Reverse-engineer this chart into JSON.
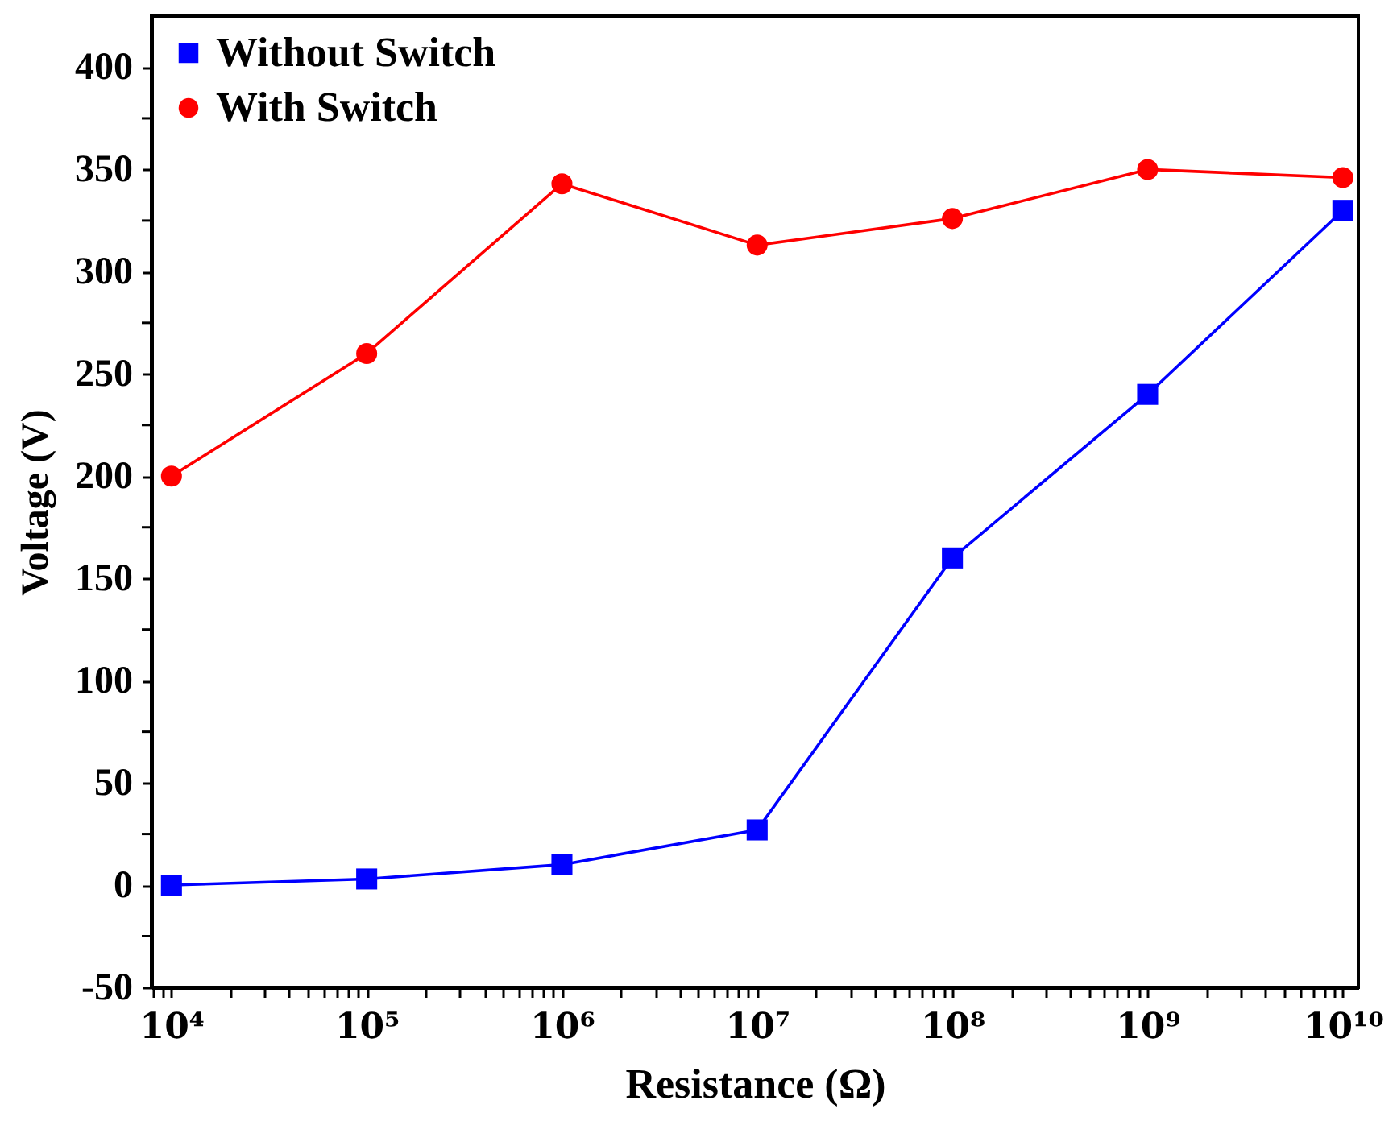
{
  "chart_data": {
    "type": "line",
    "xlabel": "Resistance (Ω)",
    "ylabel": "Voltage (V)",
    "log": "x",
    "x": [
      10000,
      100000,
      1000000,
      10000000,
      100000000,
      1000000000,
      10000000000
    ],
    "series": [
      {
        "name": "Without Switch",
        "color": "#0000ff",
        "marker": "square",
        "values": [
          0,
          3,
          10,
          27,
          160,
          240,
          330
        ]
      },
      {
        "name": "With Switch",
        "color": "#ff0000",
        "marker": "circle",
        "values": [
          200,
          260,
          343,
          313,
          326,
          350,
          346
        ]
      }
    ],
    "xlim": [
      7900,
      12000000000
    ],
    "xticks": [
      {
        "value": 8000,
        "label": null
      },
      {
        "value": 9000,
        "label": null
      },
      {
        "value": 10000,
        "label": "10⁴"
      },
      {
        "value": 20000,
        "label": null
      },
      {
        "value": 30000,
        "label": null
      },
      {
        "value": 40000,
        "label": null
      },
      {
        "value": 50000,
        "label": null
      },
      {
        "value": 60000,
        "label": null
      },
      {
        "value": 70000,
        "label": null
      },
      {
        "value": 80000,
        "label": null
      },
      {
        "value": 90000,
        "label": null
      },
      {
        "value": 100000,
        "label": "10⁵"
      },
      {
        "value": 200000,
        "label": null
      },
      {
        "value": 300000,
        "label": null
      },
      {
        "value": 400000,
        "label": null
      },
      {
        "value": 500000,
        "label": null
      },
      {
        "value": 600000,
        "label": null
      },
      {
        "value": 700000,
        "label": null
      },
      {
        "value": 800000,
        "label": null
      },
      {
        "value": 900000,
        "label": null
      },
      {
        "value": 1000000,
        "label": "10⁶"
      },
      {
        "value": 2000000,
        "label": null
      },
      {
        "value": 3000000,
        "label": null
      },
      {
        "value": 4000000,
        "label": null
      },
      {
        "value": 5000000,
        "label": null
      },
      {
        "value": 6000000,
        "label": null
      },
      {
        "value": 7000000,
        "label": null
      },
      {
        "value": 8000000,
        "label": null
      },
      {
        "value": 9000000,
        "label": null
      },
      {
        "value": 10000000,
        "label": "10⁷"
      },
      {
        "value": 20000000,
        "label": null
      },
      {
        "value": 30000000,
        "label": null
      },
      {
        "value": 40000000,
        "label": null
      },
      {
        "value": 50000000,
        "label": null
      },
      {
        "value": 60000000,
        "label": null
      },
      {
        "value": 70000000,
        "label": null
      },
      {
        "value": 80000000,
        "label": null
      },
      {
        "value": 90000000,
        "label": null
      },
      {
        "value": 100000000,
        "label": "10⁸"
      },
      {
        "value": 200000000,
        "label": null
      },
      {
        "value": 300000000,
        "label": null
      },
      {
        "value": 400000000,
        "label": null
      },
      {
        "value": 500000000,
        "label": null
      },
      {
        "value": 600000000,
        "label": null
      },
      {
        "value": 700000000,
        "label": null
      },
      {
        "value": 800000000,
        "label": null
      },
      {
        "value": 900000000,
        "label": null
      },
      {
        "value": 1000000000,
        "label": "10⁹"
      },
      {
        "value": 2000000000,
        "label": null
      },
      {
        "value": 3000000000,
        "label": null
      },
      {
        "value": 4000000000,
        "label": null
      },
      {
        "value": 5000000000,
        "label": null
      },
      {
        "value": 6000000000,
        "label": null
      },
      {
        "value": 7000000000,
        "label": null
      },
      {
        "value": 8000000000,
        "label": null
      },
      {
        "value": 9000000000,
        "label": null
      },
      {
        "value": 10000000000,
        "label": "10¹⁰"
      }
    ],
    "ylim": [
      -50,
      425
    ],
    "yticks": [
      -50,
      {
        "value": -25,
        "label": null
      },
      0,
      {
        "value": 25,
        "label": null
      },
      50,
      {
        "value": 75,
        "label": null
      },
      100,
      {
        "value": 125,
        "label": null
      },
      150,
      {
        "value": 175,
        "label": null
      },
      200,
      {
        "value": 225,
        "label": null
      },
      250,
      {
        "value": 275,
        "label": null
      },
      300,
      {
        "value": 325,
        "label": null
      },
      350,
      {
        "value": 375,
        "label": null
      },
      400
    ],
    "grid": false,
    "legend": "top left",
    "line_style": "solid"
  }
}
